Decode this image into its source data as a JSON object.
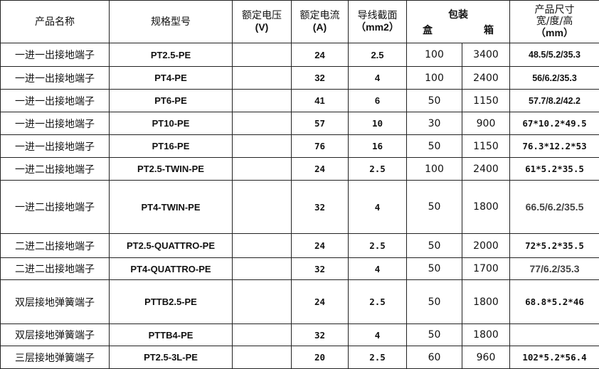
{
  "headers": {
    "name": "产品名称",
    "model": "规格型号",
    "voltage": "额定电压",
    "voltage_unit": "(V)",
    "current": "额定电流",
    "current_unit": "(A)",
    "section": "导线截面",
    "section_unit": "（mm2）",
    "pack": "包装",
    "box": "盒",
    "case": "箱",
    "size": "产品尺寸",
    "size_sub": "宽/度/高",
    "size_unit": "（mm）"
  },
  "rows": [
    {
      "name": "一进一出接地端子",
      "model": "PT2.5-PE",
      "voltage": "",
      "current": "24",
      "section": "2.5",
      "box": "100",
      "case": "3400",
      "size": "48.5/5.2/35.3"
    },
    {
      "name": "一进一出接地端子",
      "model": "PT4-PE",
      "voltage": "",
      "current": "32",
      "section": "4",
      "box": "100",
      "case": "2400",
      "size": "56/6.2/35.3"
    },
    {
      "name": "一进一出接地端子",
      "model": "PT6-PE",
      "voltage": "",
      "current": "41",
      "section": "6",
      "box": "50",
      "case": "1150",
      "size": "57.7/8.2/42.2"
    },
    {
      "name": "一进一出接地端子",
      "model": "PT10-PE",
      "voltage": "",
      "current": "57",
      "section": "10",
      "box": "30",
      "case": "900",
      "size": "67*10.2*49.5"
    },
    {
      "name": "一进一出接地端子",
      "model": "PT16-PE",
      "voltage": "",
      "current": "76",
      "section": "16",
      "box": "50",
      "case": "1150",
      "size": "76.3*12.2*53"
    },
    {
      "name": "一进二出接地端子",
      "model": "PT2.5-TWIN-PE",
      "voltage": "",
      "current": "24",
      "section": "2.5",
      "box": "100",
      "case": "2400",
      "size": "61*5.2*35.5"
    },
    {
      "name": "一进二出接地端子",
      "model": "PT4-TWIN-PE",
      "voltage": "",
      "current": "32",
      "section": "4",
      "box": "50",
      "case": "1800",
      "size": "66.5/6.2/35.5"
    },
    {
      "name": "二进二出接地端子",
      "model": "PT2.5-QUATTRO-PE",
      "voltage": "",
      "current": "24",
      "section": "2.5",
      "box": "50",
      "case": "2000",
      "size": "72*5.2*35.5"
    },
    {
      "name": "二进二出接地端子",
      "model": "PT4-QUATTRO-PE",
      "voltage": "",
      "current": "32",
      "section": "4",
      "box": "50",
      "case": "1700",
      "size": "77/6.2/35.3"
    },
    {
      "name": "双层接地弹簧端子",
      "model": "PTTB2.5-PE",
      "voltage": "",
      "current": "24",
      "section": "2.5",
      "box": "50",
      "case": "1800",
      "size": "68.8*5.2*46"
    },
    {
      "name": "双层接地弹簧端子",
      "model": "PTTB4-PE",
      "voltage": "",
      "current": "32",
      "section": "4",
      "box": "50",
      "case": "1800",
      "size": ""
    },
    {
      "name": "三层接地弹簧端子",
      "model": "PT2.5-3L-PE",
      "voltage": "",
      "current": "20",
      "section": "2.5",
      "box": "60",
      "case": "960",
      "size": "102*5.2*56.4"
    }
  ]
}
